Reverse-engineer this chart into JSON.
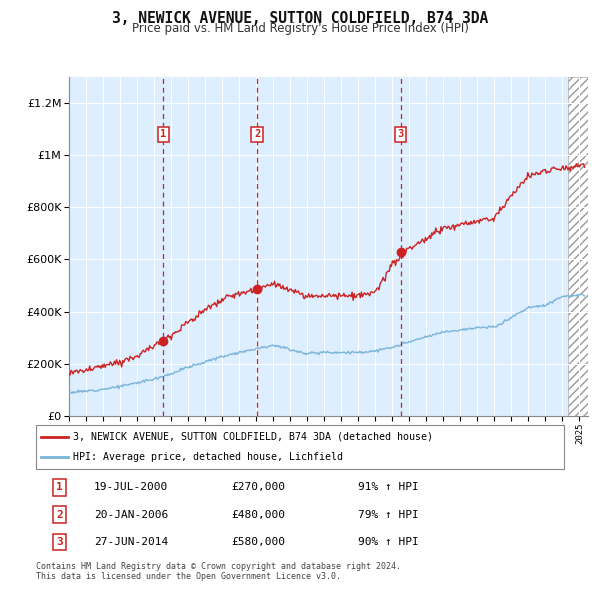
{
  "title": "3, NEWICK AVENUE, SUTTON COLDFIELD, B74 3DA",
  "subtitle": "Price paid vs. HM Land Registry's House Price Index (HPI)",
  "legend_line1": "3, NEWICK AVENUE, SUTTON COLDFIELD, B74 3DA (detached house)",
  "legend_line2": "HPI: Average price, detached house, Lichfield",
  "transactions": [
    {
      "num": 1,
      "date": "19-JUL-2000",
      "price": "£270,000",
      "hpi": "91% ↑ HPI",
      "year": 2000.55
    },
    {
      "num": 2,
      "date": "20-JAN-2006",
      "price": "£480,000",
      "hpi": "79% ↑ HPI",
      "year": 2006.05
    },
    {
      "num": 3,
      "date": "27-JUN-2014",
      "price": "£580,000",
      "hpi": "90% ↑ HPI",
      "year": 2014.49
    }
  ],
  "footnote1": "Contains HM Land Registry data © Crown copyright and database right 2024.",
  "footnote2": "This data is licensed under the Open Government Licence v3.0.",
  "hpi_color": "#7ab4d8",
  "price_color": "#cc2222",
  "vline_color": "#cc2222",
  "background_color": "#ddeeff",
  "ylim": [
    0,
    1300000
  ],
  "xlim_start": 1995.0,
  "xlim_end": 2025.5,
  "hpi_years": [
    1995,
    1996,
    1997,
    1998,
    1999,
    2000,
    2001,
    2002,
    2003,
    2004,
    2005,
    2006,
    2007,
    2008,
    2009,
    2010,
    2011,
    2012,
    2013,
    2014,
    2015,
    2016,
    2017,
    2018,
    2019,
    2020,
    2021,
    2022,
    2023,
    2024,
    2025
  ],
  "hpi_vals": [
    90000,
    95000,
    103000,
    113000,
    127000,
    142000,
    162000,
    187000,
    207000,
    228000,
    244000,
    258000,
    272000,
    255000,
    238000,
    245000,
    243000,
    243000,
    249000,
    262000,
    284000,
    302000,
    322000,
    330000,
    338000,
    340000,
    378000,
    415000,
    425000,
    458000,
    462000
  ],
  "prop_years": [
    1995,
    1996,
    1997,
    1998,
    1999,
    2000,
    2001,
    2002,
    2003,
    2004,
    2005,
    2006,
    2007,
    2008,
    2009,
    2010,
    2011,
    2012,
    2013,
    2014,
    2015,
    2016,
    2017,
    2018,
    2019,
    2020,
    2021,
    2022,
    2023,
    2024,
    2025
  ],
  "prop_vals": [
    165000,
    175000,
    190000,
    208000,
    230000,
    268000,
    310000,
    360000,
    405000,
    445000,
    470000,
    480000,
    510000,
    480000,
    455000,
    465000,
    460000,
    460000,
    470000,
    580000,
    640000,
    680000,
    720000,
    730000,
    745000,
    760000,
    845000,
    920000,
    940000,
    950000,
    960000
  ]
}
